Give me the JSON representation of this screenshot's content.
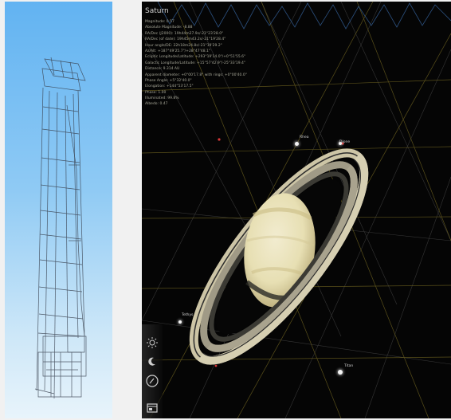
{
  "left_panel": {
    "background_colors": [
      "#62b3f2",
      "#e8f4fb"
    ],
    "wireframe_color": "#3a4250",
    "model": "tower-wireframe"
  },
  "sky_view": {
    "object_name": "Saturn",
    "info_lines": [
      "Magnitude: 0.57",
      "Absolute Magnitude: -8.88",
      "RA/Dec (J2000): 19h44m27.9s/-21°23'28.0\"",
      "RA/Dec (of date): 19h45m43.2s/-21°19'28.4\"",
      "Hour angle/DE: 22h18m24.8s/-21°19'29.2\"",
      "Az/Alt: +187°49'25.7\"/+28°47'48.1\"",
      "Ecliptic Longitude/Latitude: +293°19'14.0\"/+0°51'55.6\"",
      "Galactic Longitude/Latitude: +15°57'42.9\"/-25°33'19.4\"",
      "Distance: 9.314 AU",
      "Apparent diameter: +0°00'17.8\" with rings: +0°00'40.0\"",
      "Phase Angle: +5°32'40.0\"",
      "Elongation: +144°53'17.5\"",
      "Phase: 1.00",
      "Illuminated: 99.8%",
      "Albedo: 0.47"
    ],
    "moons": [
      {
        "name": "Rhea",
        "color": "#f4f4f4"
      },
      {
        "name": "Dione",
        "color": "#f4f4f4"
      },
      {
        "name": "Tethys",
        "color": "#f4f4f4"
      },
      {
        "name": "Titan",
        "color": "#f4f4f4"
      }
    ],
    "colors": {
      "sky": "#050505",
      "grid_equatorial": "#6f6320",
      "grid_azimuthal": "#5d5d5d",
      "meridian": "#3c6fb0",
      "planet_body": "#e7dfb3",
      "planet_band": "#c9bc84",
      "ring_outer": "#cdc5a6",
      "ring_dark": "#2d2d2d"
    },
    "toolbar": [
      {
        "name": "sun-icon"
      },
      {
        "name": "night-mode-icon"
      },
      {
        "name": "compass-icon"
      },
      {
        "name": "window-icon"
      }
    ]
  }
}
